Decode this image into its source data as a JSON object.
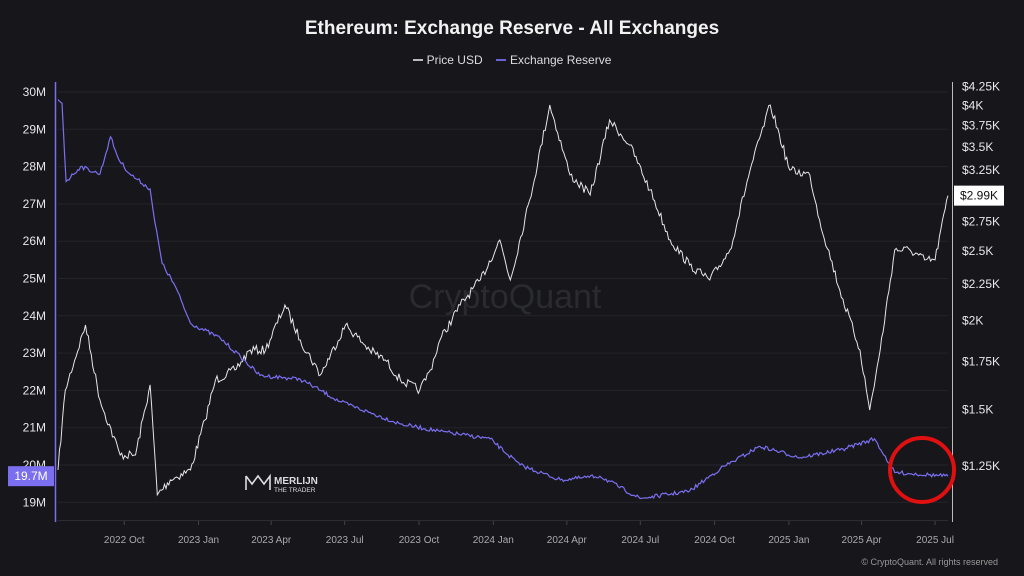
{
  "chart_data": {
    "type": "line",
    "title": "Ethereum: Exchange Reserve - All Exchanges",
    "legend": {
      "placement": "top",
      "entries": [
        "Price USD",
        "Exchange Reserve"
      ]
    },
    "colors": {
      "price": "#e6e6e6",
      "reserve": "#7b6ff0",
      "highlight_circle": "#e01010",
      "background": "#16161b"
    },
    "x_ticks": [
      "2022 Oct",
      "2023 Jan",
      "2023 Apr",
      "2023 Jul",
      "2023 Oct",
      "2024 Jan",
      "2024 Apr",
      "2024 Jul",
      "2024 Oct",
      "2025 Jan",
      "2025 Apr",
      "2025 Jul"
    ],
    "x_tick_dates": [
      "2022-10-01",
      "2023-01-01",
      "2023-04-01",
      "2023-07-01",
      "2023-10-01",
      "2024-01-01",
      "2024-04-01",
      "2024-07-01",
      "2024-10-01",
      "2025-01-01",
      "2025-04-01",
      "2025-07-01"
    ],
    "xlim": [
      "2022-07-11",
      "2025-07-17"
    ],
    "left_axis": {
      "ticks": [
        "30M",
        "29M",
        "28M",
        "27M",
        "26M",
        "25M",
        "24M",
        "23M",
        "22M",
        "21M",
        "20M",
        "19M"
      ],
      "tick_values": [
        30,
        29,
        28,
        27,
        26,
        25,
        24,
        23,
        22,
        21,
        20,
        19
      ],
      "ylim": [
        18.9,
        30.15
      ],
      "unit": "M",
      "current_label": "19.7M"
    },
    "right_axis": {
      "scale": "log",
      "ticks": [
        "$4.25K",
        "$4K",
        "$3.75K",
        "$3.5K",
        "$3.25K",
        "$2.75K",
        "$2.5K",
        "$2.25K",
        "$2K",
        "$1.75K",
        "$1.5K",
        "$1.25K"
      ],
      "tick_values": [
        4250,
        4000,
        3750,
        3500,
        3250,
        2750,
        2500,
        2250,
        2000,
        1750,
        1500,
        1250
      ],
      "current_label": "$2.99K"
    },
    "grid": true,
    "series": [
      {
        "name": "Price USD",
        "axis": "right",
        "x": [
          "2022-07-11",
          "2022-07-20",
          "2022-08-14",
          "2022-09-01",
          "2022-09-26",
          "2022-10-15",
          "2022-11-02",
          "2022-11-11",
          "2022-11-27",
          "2022-12-22",
          "2023-01-09",
          "2023-01-22",
          "2023-02-15",
          "2023-03-06",
          "2023-03-25",
          "2023-04-18",
          "2023-05-07",
          "2023-06-01",
          "2023-07-02",
          "2023-08-01",
          "2023-08-20",
          "2023-09-08",
          "2023-10-02",
          "2023-10-15",
          "2023-10-27",
          "2023-11-21",
          "2023-12-16",
          "2024-01-09",
          "2024-01-22",
          "2024-02-15",
          "2024-03-11",
          "2024-04-05",
          "2024-04-30",
          "2024-05-24",
          "2024-06-18",
          "2024-07-13",
          "2024-08-07",
          "2024-08-31",
          "2024-09-25",
          "2024-10-20",
          "2024-11-14",
          "2024-12-09",
          "2025-01-02",
          "2025-01-27",
          "2025-02-08",
          "2025-03-05",
          "2025-03-30",
          "2025-04-11",
          "2025-04-24",
          "2025-05-12",
          "2025-05-31",
          "2025-06-18",
          "2025-07-01",
          "2025-07-17"
        ],
        "values": [
          1234,
          1597,
          1970,
          1546,
          1295,
          1295,
          1624,
          1139,
          1195,
          1234,
          1450,
          1650,
          1704,
          1817,
          1817,
          2101,
          1877,
          1677,
          1970,
          1817,
          1760,
          1650,
          1597,
          1704,
          1877,
          2101,
          2278,
          2591,
          2278,
          2948,
          4006,
          3196,
          2996,
          3816,
          3520,
          3045,
          2591,
          2390,
          2278,
          2509,
          3248,
          4006,
          3248,
          3196,
          2764,
          2205,
          1817,
          1497,
          1817,
          2509,
          2509,
          2430,
          2430,
          2990
        ]
      },
      {
        "name": "Exchange Reserve",
        "axis": "left",
        "x": [
          "2022-07-11",
          "2022-07-16",
          "2022-07-21",
          "2022-08-08",
          "2022-09-01",
          "2022-09-14",
          "2022-09-24",
          "2022-10-08",
          "2022-11-02",
          "2022-11-08",
          "2022-11-17",
          "2022-12-03",
          "2022-12-22",
          "2023-01-28",
          "2023-02-22",
          "2023-03-18",
          "2023-05-07",
          "2023-06-01",
          "2023-06-25",
          "2023-09-08",
          "2023-10-27",
          "2023-12-28",
          "2024-02-03",
          "2024-03-24",
          "2024-05-12",
          "2024-07-01",
          "2024-08-31",
          "2024-10-08",
          "2024-11-26",
          "2025-01-15",
          "2025-03-05",
          "2025-04-17",
          "2025-05-12",
          "2025-07-17"
        ],
        "values": [
          29.8,
          29.7,
          27.6,
          28.0,
          27.8,
          28.8,
          28.2,
          27.8,
          27.4,
          26.5,
          25.4,
          24.8,
          23.8,
          23.4,
          22.9,
          22.4,
          22.3,
          22.0,
          21.7,
          21.1,
          20.9,
          20.7,
          20.0,
          19.6,
          19.7,
          19.1,
          19.3,
          19.9,
          20.5,
          20.2,
          20.4,
          20.7,
          19.8,
          19.7
        ]
      }
    ],
    "watermark": "CryptoQuant",
    "logo": {
      "line1": "MERLIJN",
      "line2": "THE TRADER"
    },
    "copyright": "© CryptoQuant. All rights reserved"
  }
}
